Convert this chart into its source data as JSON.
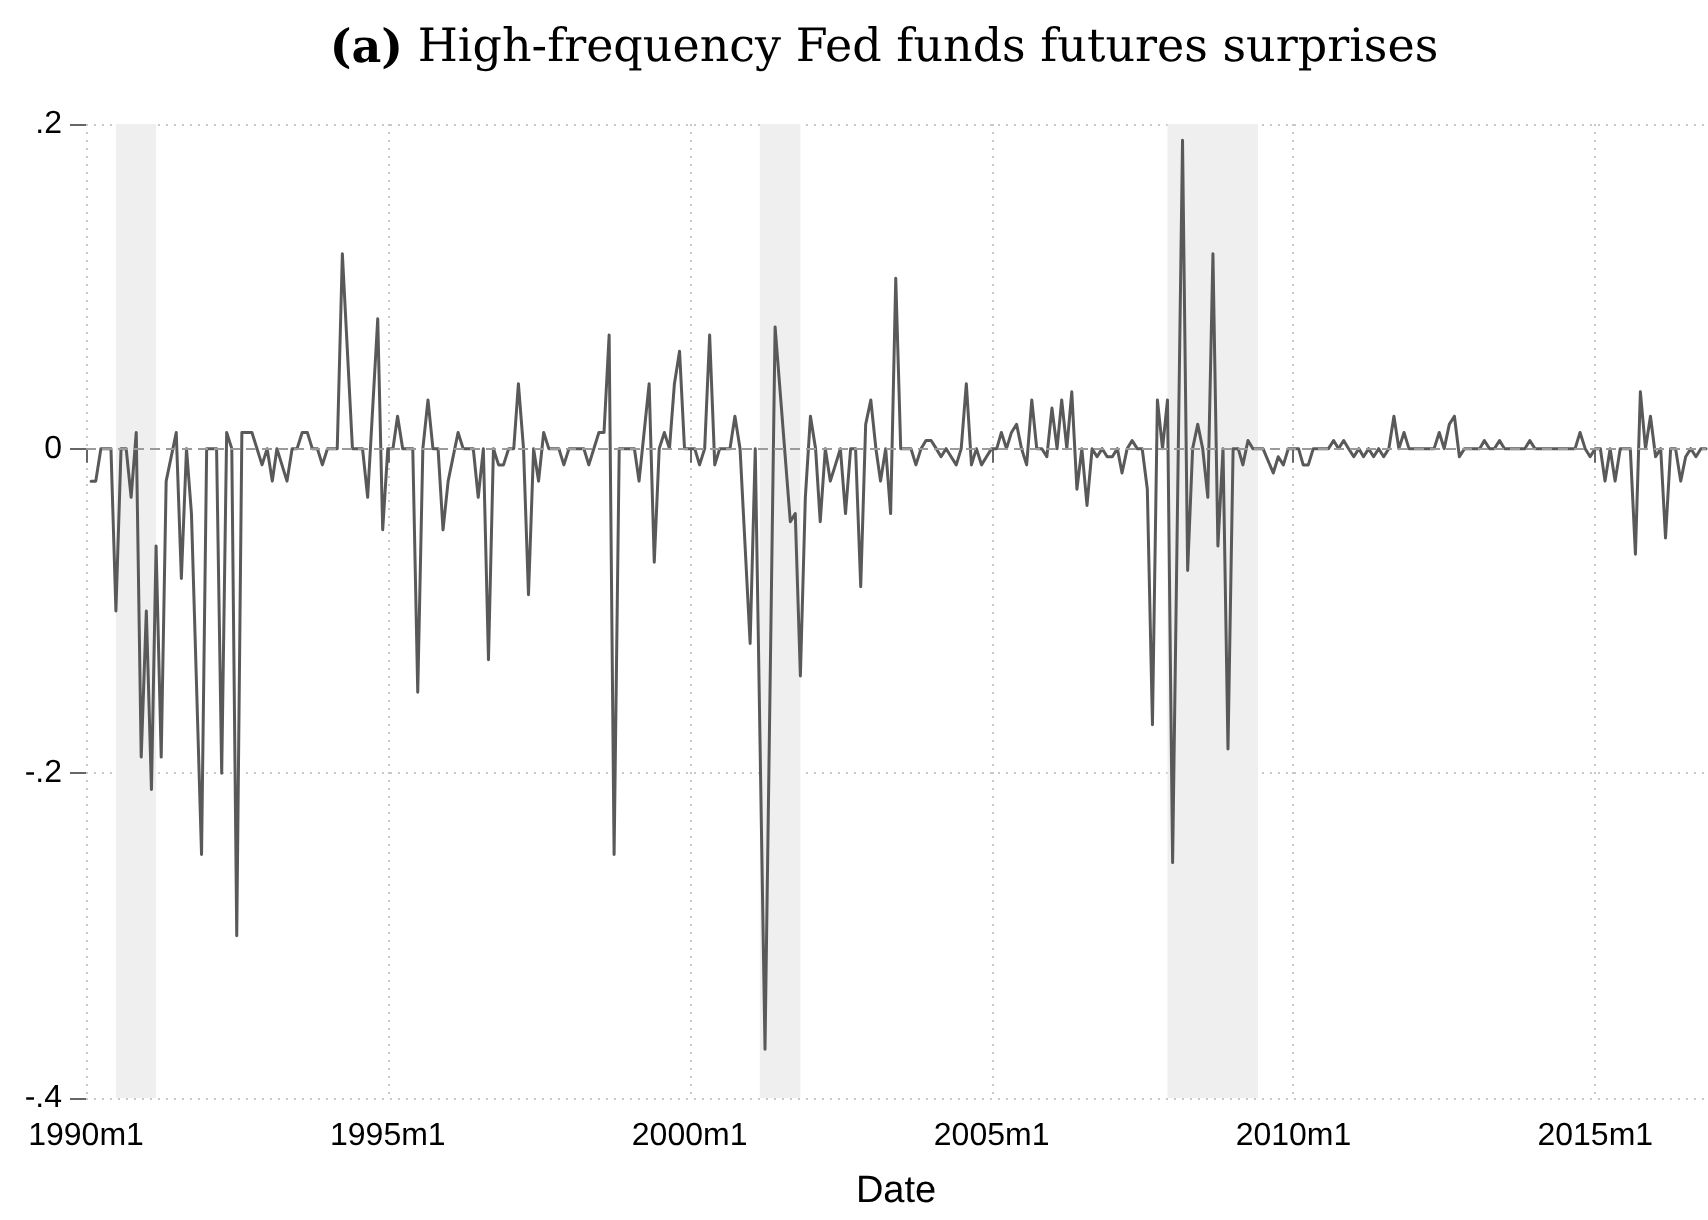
{
  "chart_data": {
    "type": "line",
    "title": "(a) High-frequency Fed funds futures surprises",
    "xlabel": "Date",
    "x": [
      "1990-02",
      "1990-03",
      "1990-04",
      "1990-06",
      "1990-07",
      "1990-08",
      "1990-09",
      "1990-10",
      "1990-11",
      "1990-12",
      "1991-01",
      "1991-02",
      "1991-03",
      "1991-04",
      "1991-05",
      "1991-07",
      "1991-08",
      "1991-09",
      "1991-10",
      "1991-12",
      "1992-01",
      "1992-03",
      "1992-04",
      "1992-05",
      "1992-06",
      "1992-07",
      "1992-08",
      "1992-10",
      "1992-12",
      "1993-01",
      "1993-02",
      "1993-03",
      "1993-05",
      "1993-06",
      "1993-07",
      "1993-08",
      "1993-09",
      "1993-10",
      "1993-11",
      "1993-12",
      "1994-01",
      "1994-03",
      "1994-04",
      "1994-06",
      "1994-08",
      "1994-09",
      "1994-11",
      "1994-12",
      "1995-01",
      "1995-02",
      "1995-03",
      "1995-04",
      "1995-06",
      "1995-07",
      "1995-08",
      "1995-09",
      "1995-10",
      "1995-11",
      "1995-12",
      "1996-01",
      "1996-03",
      "1996-04",
      "1996-06",
      "1996-07",
      "1996-08",
      "1996-09",
      "1996-10",
      "1996-11",
      "1996-12",
      "1997-01",
      "1997-02",
      "1997-03",
      "1997-04",
      "1997-05",
      "1997-06",
      "1997-07",
      "1997-08",
      "1997-09",
      "1997-11",
      "1997-12",
      "1998-01",
      "1998-04",
      "1998-05",
      "1998-07",
      "1998-08",
      "1998-09",
      "1998-10",
      "1998-11",
      "1999-02",
      "1999-03",
      "1999-05",
      "1999-06",
      "1999-07",
      "1999-08",
      "1999-09",
      "1999-10",
      "1999-11",
      "1999-12",
      "2000-02",
      "2000-03",
      "2000-04",
      "2000-05",
      "2000-06",
      "2000-07",
      "2000-09",
      "2000-10",
      "2000-11",
      "2001-01",
      "2001-02",
      "2001-04",
      "2001-06",
      "2001-09",
      "2001-10",
      "2001-11",
      "2001-12",
      "2002-01",
      "2002-02",
      "2002-03",
      "2002-04",
      "2002-05",
      "2002-06",
      "2002-07",
      "2002-08",
      "2002-09",
      "2002-10",
      "2002-11",
      "2002-12",
      "2003-01",
      "2003-02",
      "2003-03",
      "2003-04",
      "2003-05",
      "2003-06",
      "2003-07",
      "2003-09",
      "2003-10",
      "2003-11",
      "2003-12",
      "2004-01",
      "2004-02",
      "2004-03",
      "2004-04",
      "2004-05",
      "2004-06",
      "2004-07",
      "2004-08",
      "2004-09",
      "2004-10",
      "2004-11",
      "2004-12",
      "2005-01",
      "2005-02",
      "2005-03",
      "2005-04",
      "2005-05",
      "2005-06",
      "2005-07",
      "2005-08",
      "2005-09",
      "2005-10",
      "2005-11",
      "2005-12",
      "2006-01",
      "2006-02",
      "2006-03",
      "2006-04",
      "2006-05",
      "2006-06",
      "2006-07",
      "2006-08",
      "2006-09",
      "2006-10",
      "2006-11",
      "2006-12",
      "2007-01",
      "2007-02",
      "2007-03",
      "2007-04",
      "2007-05",
      "2007-06",
      "2007-07",
      "2007-08",
      "2007-09",
      "2007-10",
      "2007-11",
      "2007-12",
      "2008-01",
      "2008-03",
      "2008-04",
      "2008-05",
      "2008-06",
      "2008-07",
      "2008-08",
      "2008-09",
      "2008-10",
      "2008-11",
      "2008-12",
      "2009-01",
      "2009-02",
      "2009-03",
      "2009-04",
      "2009-05",
      "2009-07",
      "2009-09",
      "2009-10",
      "2009-11",
      "2009-12",
      "2010-02",
      "2010-03",
      "2010-04",
      "2010-05",
      "2010-08",
      "2010-09",
      "2010-10",
      "2010-11",
      "2010-12",
      "2011-01",
      "2011-02",
      "2011-03",
      "2011-04",
      "2011-05",
      "2011-06",
      "2011-07",
      "2011-08",
      "2011-09",
      "2011-10",
      "2011-11",
      "2011-12",
      "2012-05",
      "2012-06",
      "2012-07",
      "2012-08",
      "2012-09",
      "2012-10",
      "2012-11",
      "2013-02",
      "2013-03",
      "2013-04",
      "2013-05",
      "2013-06",
      "2013-07",
      "2013-11",
      "2013-12",
      "2014-01",
      "2014-09",
      "2014-10",
      "2014-11",
      "2014-12",
      "2015-01",
      "2015-02",
      "2015-03",
      "2015-04",
      "2015-05",
      "2015-06",
      "2015-08",
      "2015-09",
      "2015-10",
      "2015-11",
      "2015-12",
      "2016-01",
      "2016-02",
      "2016-03",
      "2016-04",
      "2016-05",
      "2016-06",
      "2016-07",
      "2016-08",
      "2016-09",
      "2016-10",
      "2016-11"
    ],
    "values": [
      -0.02,
      -0.02,
      0,
      0,
      -0.1,
      0,
      0,
      -0.03,
      0.01,
      -0.19,
      -0.1,
      -0.21,
      -0.06,
      -0.19,
      -0.02,
      0.01,
      -0.08,
      0,
      -0.04,
      -0.25,
      0,
      0,
      -0.2,
      0.01,
      0,
      -0.3,
      0.01,
      0.01,
      -0.01,
      0,
      -0.02,
      0,
      -0.02,
      0,
      0,
      0.01,
      0.01,
      0,
      0,
      -0.01,
      0,
      0,
      0.12,
      0,
      0,
      -0.03,
      0.08,
      -0.05,
      0,
      0,
      0.02,
      0,
      0,
      -0.15,
      0,
      0.03,
      0,
      0,
      -0.05,
      -0.02,
      0.01,
      0,
      0,
      -0.03,
      0,
      -0.13,
      0,
      -0.01,
      -0.01,
      0,
      0,
      0.04,
      0,
      -0.09,
      0,
      -0.02,
      0.01,
      0,
      0,
      -0.01,
      0,
      0,
      -0.01,
      0.01,
      0.01,
      0.07,
      -0.25,
      0,
      0,
      -0.02,
      0.04,
      -0.07,
      0,
      0.01,
      0,
      0.04,
      0.06,
      0,
      0,
      -0.01,
      0,
      0.07,
      -0.01,
      0,
      0,
      0.02,
      0,
      -0.12,
      0,
      -0.37,
      0.075,
      -0.045,
      -0.04,
      -0.14,
      -0.03,
      0.02,
      0,
      -0.045,
      0,
      -0.02,
      -0.01,
      0,
      -0.04,
      0,
      0,
      -0.085,
      0.015,
      0.03,
      0,
      -0.02,
      0,
      -0.04,
      0.105,
      0,
      0,
      -0.01,
      0,
      0.005,
      0.005,
      0,
      -0.005,
      0,
      -0.005,
      -0.01,
      0,
      0.04,
      -0.01,
      0,
      -0.01,
      -0.005,
      0,
      0,
      0.01,
      0,
      0.01,
      0.015,
      0,
      -0.01,
      0.03,
      0,
      0,
      -0.005,
      0.025,
      0,
      0.03,
      0,
      0.035,
      -0.025,
      0,
      -0.035,
      0,
      -0.005,
      0,
      -0.005,
      -0.005,
      0,
      -0.015,
      0,
      0.005,
      0,
      0,
      -0.025,
      -0.17,
      0.03,
      0,
      0.03,
      -0.255,
      0.19,
      -0.075,
      0,
      0.015,
      0,
      -0.03,
      0.12,
      -0.06,
      0,
      -0.185,
      0,
      0,
      -0.01,
      0.005,
      0,
      0,
      -0.015,
      -0.005,
      -0.01,
      0,
      0,
      -0.01,
      -0.01,
      0,
      0,
      0.005,
      0,
      0.005,
      0,
      -0.005,
      0,
      -0.005,
      0,
      -0.005,
      0,
      -0.005,
      0,
      0.02,
      0,
      0.01,
      0,
      0,
      0.01,
      0,
      0.015,
      0.02,
      -0.005,
      0,
      0,
      0.005,
      0,
      0,
      0.005,
      0,
      0,
      0.005,
      0,
      0,
      0.01,
      0,
      -0.005,
      0,
      0,
      -0.02,
      0,
      -0.02,
      0,
      0,
      -0.065,
      0.035,
      0,
      0.02,
      -0.005,
      0,
      -0.055,
      0,
      0,
      -0.02,
      -0.005,
      0,
      -0.005,
      0,
      0
    ],
    "color": "#595959",
    "xlim": [
      "1990-01",
      "2016-11"
    ],
    "xticks": [
      {
        "value": "1990-01",
        "label": "1990m1"
      },
      {
        "value": "1995-01",
        "label": "1995m1"
      },
      {
        "value": "2000-01",
        "label": "2000m1"
      },
      {
        "value": "2005-01",
        "label": "2005m1"
      },
      {
        "value": "2010-01",
        "label": "2010m1"
      },
      {
        "value": "2015-01",
        "label": "2015m1"
      }
    ],
    "ylim": [
      -0.4,
      0.2
    ],
    "yticks": [
      {
        "value": -0.4,
        "label": "-.4"
      },
      {
        "value": -0.2,
        "label": "-.2"
      },
      0,
      {
        "value": 0.2,
        "label": ".2"
      }
    ],
    "grid": true,
    "ref_lines": [
      {
        "axis": "y",
        "value": 0,
        "color": "#9a9a9a",
        "line_style": "dashed"
      }
    ],
    "bands": [
      {
        "axis": "x",
        "from": "1990-07",
        "to": "1991-03",
        "color": "#efefef"
      },
      {
        "axis": "x",
        "from": "2001-03",
        "to": "2001-11",
        "color": "#efefef"
      },
      {
        "axis": "x",
        "from": "2007-12",
        "to": "2009-06",
        "color": "#efefef"
      }
    ]
  }
}
